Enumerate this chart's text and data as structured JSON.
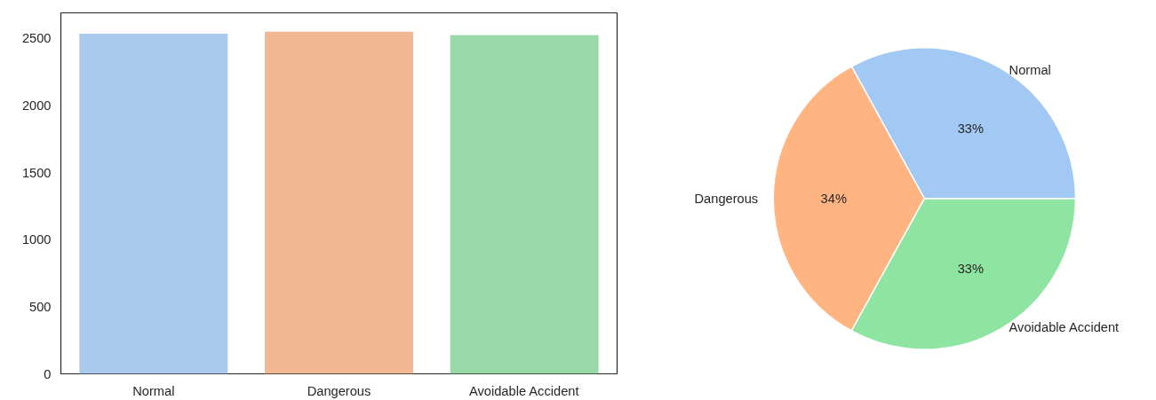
{
  "chart_data": [
    {
      "type": "bar",
      "categories": [
        "Normal",
        "Dangerous",
        "Avoidable Accident"
      ],
      "values": [
        2535,
        2550,
        2524
      ],
      "colors": [
        "#abc9ec",
        "#f0b893",
        "#98d9a8"
      ],
      "ylim": [
        0,
        2690
      ],
      "yticks": [
        0,
        500,
        1000,
        1500,
        2000,
        2500
      ],
      "grid": false
    },
    {
      "type": "pie",
      "categories": [
        "Normal",
        "Dangerous",
        "Avoidable Accident"
      ],
      "values": [
        33,
        34,
        33
      ],
      "colors": [
        "#a1c9f4",
        "#ffb482",
        "#8de5a1"
      ],
      "value_labels": [
        "33%",
        "34%",
        "33%"
      ]
    }
  ]
}
